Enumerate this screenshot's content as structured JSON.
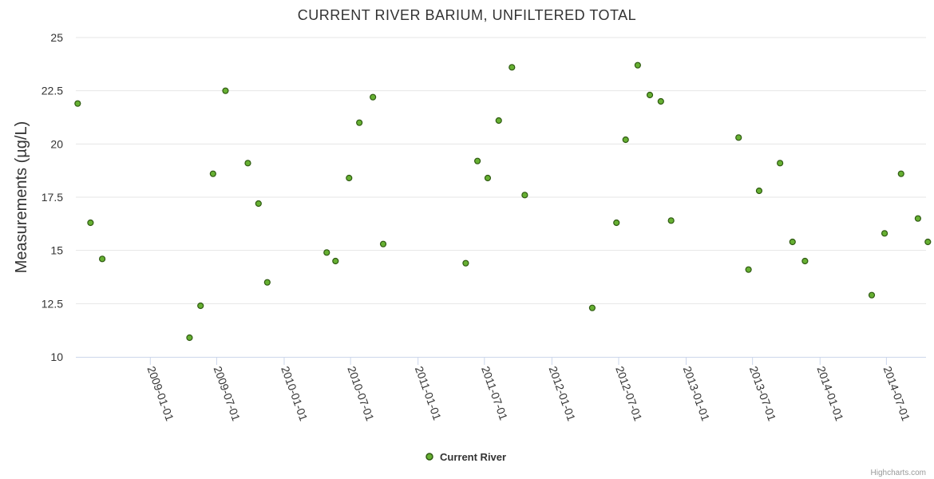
{
  "chart_data": {
    "type": "scatter",
    "title": "CURRENT RIVER BARIUM, UNFILTERED TOTAL",
    "xlabel": "",
    "ylabel": "Measurements (µg/L)",
    "ylim": [
      10,
      25
    ],
    "yticks": [
      10,
      12.5,
      15,
      17.5,
      20,
      22.5,
      25
    ],
    "ytick_labels": [
      "10",
      "12.5",
      "15",
      "17.5",
      "20",
      "22.5",
      "25"
    ],
    "xlim": [
      "2008-06-12",
      "2014-10-17"
    ],
    "xticks": [
      "2009-01-01",
      "2009-07-01",
      "2010-01-01",
      "2010-07-01",
      "2011-01-01",
      "2011-07-01",
      "2012-01-01",
      "2012-07-01",
      "2013-01-01",
      "2013-07-01",
      "2014-01-01",
      "2014-07-01"
    ],
    "legend_position": "bottom-center",
    "series": [
      {
        "name": "Current River",
        "color": "#66b032",
        "points": [
          {
            "x": "2008-06-17",
            "y": 21.9
          },
          {
            "x": "2008-07-22",
            "y": 16.3
          },
          {
            "x": "2008-08-23",
            "y": 14.6
          },
          {
            "x": "2009-04-18",
            "y": 10.9
          },
          {
            "x": "2009-05-18",
            "y": 12.4
          },
          {
            "x": "2009-06-21",
            "y": 18.6
          },
          {
            "x": "2009-07-25",
            "y": 22.5
          },
          {
            "x": "2009-09-24",
            "y": 19.1
          },
          {
            "x": "2009-10-23",
            "y": 17.2
          },
          {
            "x": "2009-11-16",
            "y": 13.5
          },
          {
            "x": "2010-04-27",
            "y": 14.9
          },
          {
            "x": "2010-05-21",
            "y": 14.5
          },
          {
            "x": "2010-06-27",
            "y": 18.4
          },
          {
            "x": "2010-07-25",
            "y": 21.0
          },
          {
            "x": "2010-08-31",
            "y": 22.2
          },
          {
            "x": "2010-09-28",
            "y": 15.3
          },
          {
            "x": "2011-05-11",
            "y": 14.4
          },
          {
            "x": "2011-06-12",
            "y": 19.2
          },
          {
            "x": "2011-07-10",
            "y": 18.4
          },
          {
            "x": "2011-08-09",
            "y": 21.1
          },
          {
            "x": "2011-09-14",
            "y": 23.6
          },
          {
            "x": "2011-10-19",
            "y": 17.6
          },
          {
            "x": "2012-04-20",
            "y": 12.3
          },
          {
            "x": "2012-06-25",
            "y": 16.3
          },
          {
            "x": "2012-07-20",
            "y": 20.2
          },
          {
            "x": "2012-08-22",
            "y": 23.7
          },
          {
            "x": "2012-09-24",
            "y": 22.3
          },
          {
            "x": "2012-10-24",
            "y": 22.0
          },
          {
            "x": "2012-11-21",
            "y": 16.4
          },
          {
            "x": "2013-05-24",
            "y": 20.3
          },
          {
            "x": "2013-06-20",
            "y": 14.1
          },
          {
            "x": "2013-07-19",
            "y": 17.8
          },
          {
            "x": "2013-09-14",
            "y": 19.1
          },
          {
            "x": "2013-10-18",
            "y": 15.4
          },
          {
            "x": "2013-11-21",
            "y": 14.5
          },
          {
            "x": "2014-05-22",
            "y": 12.9
          },
          {
            "x": "2014-06-26",
            "y": 15.8
          },
          {
            "x": "2014-08-10",
            "y": 18.6
          },
          {
            "x": "2014-09-25",
            "y": 16.5
          },
          {
            "x": "2014-10-22",
            "y": 15.4
          }
        ]
      }
    ]
  },
  "credits": "Highcharts.com"
}
